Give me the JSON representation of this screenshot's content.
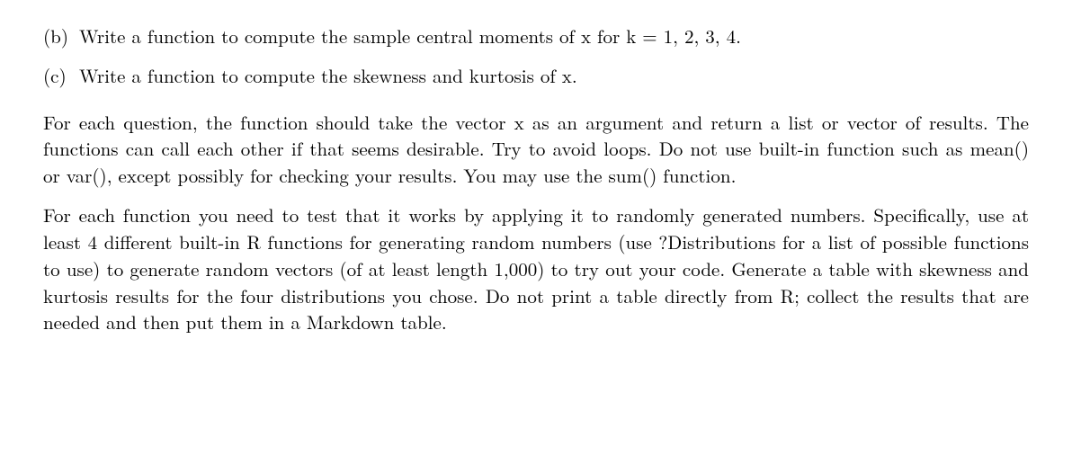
{
  "items": [
    {
      "label": "(b)",
      "text": "Write a function to compute the sample central moments of x for k = 1, 2, 3, 4."
    },
    {
      "label": "(c)",
      "text": "Write a function to compute the skewness and kurtosis of x."
    }
  ],
  "paragraphs": [
    "For each question, the function should take the vector x as an argument and return a list or vector of results. The functions can call each other if that seems desirable. Try to avoid loops. Do not use built-in function such as mean() or var(), except possibly for checking your results. You may use the sum() function.",
    "For each function you need to test that it works by applying it to randomly generated numbers. Specifically, use at least 4 different built-in R functions for generating random numbers (use ?Distributions for a list of possible functions to use) to generate random vectors (of at least length 1,000) to try out your code. Generate a table with skewness and kurtosis results for the four distributions you chose. Do not print a table directly from R; collect the results that are needed and then put them in a Markdown table."
  ],
  "colors": {
    "text": "#000000",
    "background": "#ffffff"
  },
  "typography": {
    "font_family": "Latin Modern Roman / Computer Modern (serif)",
    "font_size_pt": 16,
    "line_height": 1.42,
    "alignment": "justify"
  }
}
